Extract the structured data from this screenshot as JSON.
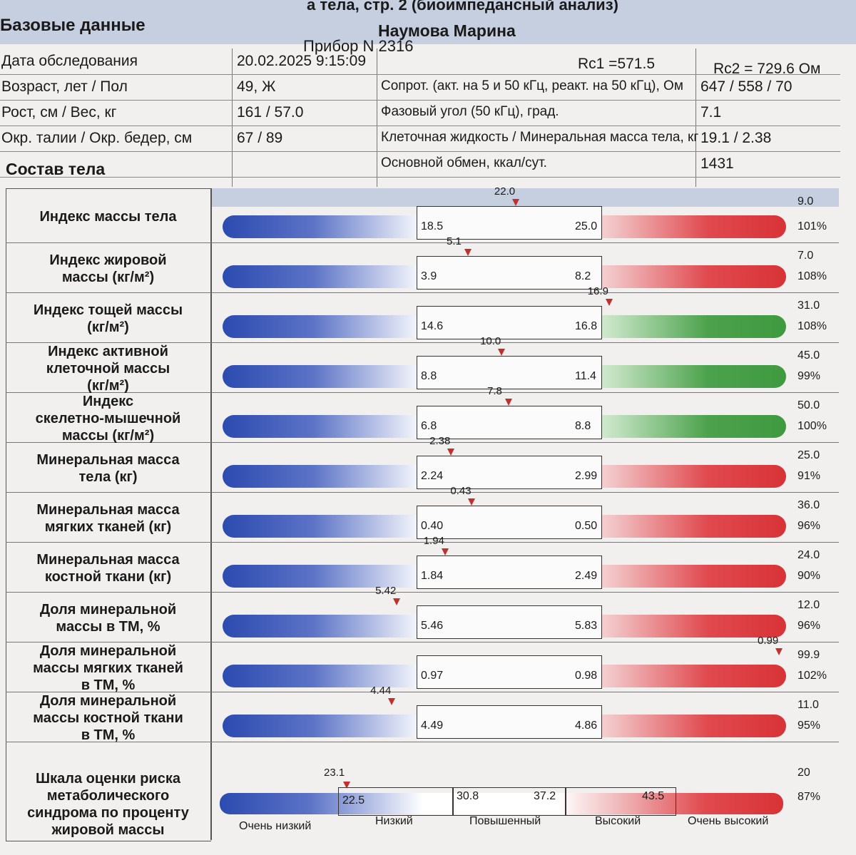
{
  "header": {
    "topline": "а тела, стр. 2 (биоимпедансный анализ)",
    "basic_data": "Базовые данные",
    "patient": "Наумова Марина",
    "device": "Прибор N 2316",
    "rc1": "Rc1 =571.5",
    "rc2": "Rc2 = 729.6 Ом"
  },
  "info_rows": [
    {
      "label": "Дата обследования",
      "value": "20.02.2025 9:15:09",
      "label2": "",
      "value2": ""
    },
    {
      "label": "Возраст, лет / Пол",
      "value": "49, Ж",
      "label2": "Сопрот. (акт. на 5 и 50 кГц, реакт. на 50 кГц), Ом",
      "value2": "647 / 558 / 70"
    },
    {
      "label": "Рост, см / Вес, кг",
      "value": "161 / 57.0",
      "label2": "Фазовый угол (50 кГц), град.",
      "value2": "7.1"
    },
    {
      "label": "Окр. талии / Окр. бедер, см",
      "value": "67 / 89",
      "label2": "Клеточная жидкость / Минеральная масса тела, кг",
      "value2": "19.1 / 2.38"
    },
    {
      "label": "",
      "value": "",
      "label2": "Основной обмен, ккал/сут.",
      "value2": "1431"
    }
  ],
  "section": "Состав тела",
  "rows": [
    {
      "lines": [
        "Индекс массы тела"
      ],
      "value": "22.0",
      "low": "18.5",
      "high": "25.0",
      "r1": "9.0",
      "r2": "101%",
      "color": "red"
    },
    {
      "lines": [
        "Индекс жировой",
        "массы (кг/м²)"
      ],
      "value": "5.1",
      "low": "3.9",
      "high": "8.2",
      "r1": "7.0",
      "r2": "108%",
      "color": "red"
    },
    {
      "lines": [
        "Индекс тощей массы",
        "(кг/м²)"
      ],
      "value": "16.9",
      "low": "14.6",
      "high": "16.8",
      "r1": "31.0",
      "r2": "108%",
      "color": "green"
    },
    {
      "lines": [
        "Индекс активной",
        "клеточной массы",
        "(кг/м²)"
      ],
      "value": "10.0",
      "low": "8.8",
      "high": "11.4",
      "r1": "45.0",
      "r2": "99%",
      "color": "green"
    },
    {
      "lines": [
        "Индекс",
        "скелетно-мышечной",
        "массы (кг/м²)"
      ],
      "value": "7.8",
      "low": "6.8",
      "high": "8.8",
      "r1": "50.0",
      "r2": "100%",
      "color": "green"
    },
    {
      "lines": [
        "Минеральная масса",
        "тела (кг)"
      ],
      "value": "2.38",
      "low": "2.24",
      "high": "2.99",
      "r1": "25.0",
      "r2": "91%",
      "color": "red"
    },
    {
      "lines": [
        "Минеральная масса",
        "мягких тканей (кг)"
      ],
      "value": "0.43",
      "low": "0.40",
      "high": "0.50",
      "r1": "36.0",
      "r2": "96%",
      "color": "red"
    },
    {
      "lines": [
        "Минеральная масса",
        "костной ткани (кг)"
      ],
      "value": "1.94",
      "low": "1.84",
      "high": "2.49",
      "r1": "24.0",
      "r2": "90%",
      "color": "red"
    },
    {
      "lines": [
        "Доля минеральной",
        "массы в ТМ, %"
      ],
      "value": "5.42",
      "low": "5.46",
      "high": "5.83",
      "r1": "12.0",
      "r2": "96%",
      "color": "red"
    },
    {
      "lines": [
        "Доля минеральной",
        "массы мягких тканей",
        "в ТМ, %"
      ],
      "value": "0.99",
      "low": "0.97",
      "high": "0.98",
      "r1": "99.9",
      "r2": "102%",
      "color": "red"
    },
    {
      "lines": [
        "Доля минеральной",
        "массы костной ткани",
        "в ТМ, %"
      ],
      "value": "4.44",
      "low": "4.49",
      "high": "4.86",
      "r1": "11.0",
      "r2": "95%",
      "color": "red"
    }
  ],
  "metabolic": {
    "lines": [
      "Шкала оценки риска",
      "метаболического",
      "синдрома по проценту",
      "жировой массы"
    ],
    "value": "23.1",
    "thresholds": [
      "22.5",
      "30.8",
      "37.2",
      "43.5"
    ],
    "categories": [
      "Очень низкий",
      "Низкий",
      "Повышенный",
      "Высокий",
      "Очень высокий"
    ],
    "r1": "20",
    "r2": "87%"
  },
  "colors": {
    "header_band": "#c5cfe0",
    "marker": "#c0302c",
    "bar_blue": "#2c4bb0",
    "bar_red": "#d83337",
    "bar_green": "#3f9a3f"
  }
}
